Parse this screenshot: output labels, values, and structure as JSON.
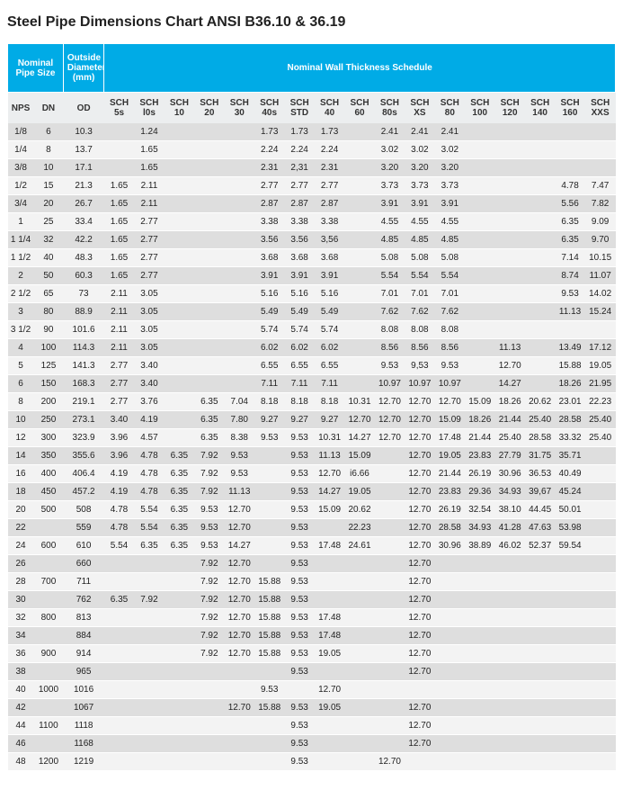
{
  "title": "Steel Pipe Dimensions Chart ANSI B36.10 & 36.19",
  "headers": {
    "group_nps": "Nominal Pipe Size",
    "group_od": "Outside Diameter (mm)",
    "group_sch": "Nominal Wall Thickness Schedule",
    "nps": "NPS",
    "dn": "DN",
    "od": "OD",
    "sch": [
      "SCH 5s",
      "SCH l0s",
      "SCH 10",
      "SCH 20",
      "SCH 30",
      "SCH 40s",
      "SCH STD",
      "SCH 40",
      "SCH 60",
      "SCH 80s",
      "SCH XS",
      "SCH 80",
      "SCH 100",
      "SCH 120",
      "SCH 140",
      "SCH 160",
      "SCH XXS"
    ]
  },
  "rows": [
    {
      "nps": "1/8",
      "dn": "6",
      "od": "10.3",
      "v": [
        "",
        "1.24",
        "",
        "",
        "",
        "1.73",
        "1.73",
        "1.73",
        "",
        "2.41",
        "2.41",
        "2.41",
        "",
        "",
        "",
        "",
        ""
      ]
    },
    {
      "nps": "1/4",
      "dn": "8",
      "od": "13.7",
      "v": [
        "",
        "1.65",
        "",
        "",
        "",
        "2.24",
        "2.24",
        "2.24",
        "",
        "3.02",
        "3.02",
        "3.02",
        "",
        "",
        "",
        "",
        ""
      ]
    },
    {
      "nps": "3/8",
      "dn": "10",
      "od": "17.1",
      "v": [
        "",
        "1.65",
        "",
        "",
        "",
        "2.31",
        "2,31",
        "2.31",
        "",
        "3.20",
        "3.20",
        "3.20",
        "",
        "",
        "",
        "",
        ""
      ]
    },
    {
      "nps": "1/2",
      "dn": "15",
      "od": "21.3",
      "v": [
        "1.65",
        "2.11",
        "",
        "",
        "",
        "2.77",
        "2.77",
        "2.77",
        "",
        "3.73",
        "3.73",
        "3.73",
        "",
        "",
        "",
        "4.78",
        "7.47"
      ]
    },
    {
      "nps": "3/4",
      "dn": "20",
      "od": "26.7",
      "v": [
        "1.65",
        "2.11",
        "",
        "",
        "",
        "2.87",
        "2.87",
        "2.87",
        "",
        "3.91",
        "3.91",
        "3.91",
        "",
        "",
        "",
        "5.56",
        "7.82"
      ]
    },
    {
      "nps": "1",
      "dn": "25",
      "od": "33.4",
      "v": [
        "1.65",
        "2.77",
        "",
        "",
        "",
        "3.38",
        "3.38",
        "3.38",
        "",
        "4.55",
        "4.55",
        "4.55",
        "",
        "",
        "",
        "6.35",
        "9.09"
      ]
    },
    {
      "nps": "1 1/4",
      "dn": "32",
      "od": "42.2",
      "v": [
        "1.65",
        "2.77",
        "",
        "",
        "",
        "3.56",
        "3.56",
        "3,56",
        "",
        "4.85",
        "4.85",
        "4.85",
        "",
        "",
        "",
        "6.35",
        "9.70"
      ]
    },
    {
      "nps": "1 1/2",
      "dn": "40",
      "od": "48.3",
      "v": [
        "1.65",
        "2.77",
        "",
        "",
        "",
        "3.68",
        "3.68",
        "3.68",
        "",
        "5.08",
        "5.08",
        "5.08",
        "",
        "",
        "",
        "7.14",
        "10.15"
      ]
    },
    {
      "nps": "2",
      "dn": "50",
      "od": "60.3",
      "v": [
        "1.65",
        "2.77",
        "",
        "",
        "",
        "3.91",
        "3.91",
        "3.91",
        "",
        "5.54",
        "5.54",
        "5.54",
        "",
        "",
        "",
        "8.74",
        "11.07"
      ]
    },
    {
      "nps": "2 1/2",
      "dn": "65",
      "od": "73",
      "v": [
        "2.11",
        "3.05",
        "",
        "",
        "",
        "5.16",
        "5.16",
        "5.16",
        "",
        "7.01",
        "7.01",
        "7.01",
        "",
        "",
        "",
        "9.53",
        "14.02"
      ]
    },
    {
      "nps": "3",
      "dn": "80",
      "od": "88.9",
      "v": [
        "2.11",
        "3.05",
        "",
        "",
        "",
        "5.49",
        "5.49",
        "5.49",
        "",
        "7.62",
        "7.62",
        "7.62",
        "",
        "",
        "",
        "11.13",
        "15.24"
      ]
    },
    {
      "nps": "3 1/2",
      "dn": "90",
      "od": "101.6",
      "v": [
        "2.11",
        "3.05",
        "",
        "",
        "",
        "5.74",
        "5.74",
        "5.74",
        "",
        "8.08",
        "8.08",
        "8.08",
        "",
        "",
        "",
        "",
        ""
      ]
    },
    {
      "nps": "4",
      "dn": "100",
      "od": "114.3",
      "v": [
        "2.11",
        "3.05",
        "",
        "",
        "",
        "6.02",
        "6.02",
        "6.02",
        "",
        "8.56",
        "8.56",
        "8.56",
        "",
        "11.13",
        "",
        "13.49",
        "17.12"
      ]
    },
    {
      "nps": "5",
      "dn": "125",
      "od": "141.3",
      "v": [
        "2.77",
        "3.40",
        "",
        "",
        "",
        "6.55",
        "6.55",
        "6.55",
        "",
        "9.53",
        "9,53",
        "9.53",
        "",
        "12.70",
        "",
        "15.88",
        "19.05"
      ]
    },
    {
      "nps": "6",
      "dn": "150",
      "od": "168.3",
      "v": [
        "2.77",
        "3.40",
        "",
        "",
        "",
        "7.11",
        "7.11",
        "7.11",
        "",
        "10.97",
        "10.97",
        "10.97",
        "",
        "14.27",
        "",
        "18.26",
        "21.95"
      ]
    },
    {
      "nps": "8",
      "dn": "200",
      "od": "219.1",
      "v": [
        "2.77",
        "3.76",
        "",
        "6.35",
        "7.04",
        "8.18",
        "8.18",
        "8.18",
        "10.31",
        "12.70",
        "12.70",
        "12.70",
        "15.09",
        "18.26",
        "20.62",
        "23.01",
        "22.23"
      ]
    },
    {
      "nps": "10",
      "dn": "250",
      "od": "273.1",
      "v": [
        "3.40",
        "4.19",
        "",
        "6.35",
        "7.80",
        "9.27",
        "9.27",
        "9.27",
        "12.70",
        "12.70",
        "12.70",
        "15.09",
        "18.26",
        "21.44",
        "25.40",
        "28.58",
        "25.40"
      ]
    },
    {
      "nps": "12",
      "dn": "300",
      "od": "323.9",
      "v": [
        "3.96",
        "4.57",
        "",
        "6.35",
        "8.38",
        "9.53",
        "9.53",
        "10.31",
        "14.27",
        "12.70",
        "12.70",
        "17.48",
        "21.44",
        "25.40",
        "28.58",
        "33.32",
        "25.40"
      ]
    },
    {
      "nps": "14",
      "dn": "350",
      "od": "355.6",
      "v": [
        "3.96",
        "4.78",
        "6.35",
        "7.92",
        "9.53",
        "",
        "9.53",
        "11.13",
        "15.09",
        "",
        "12.70",
        "19.05",
        "23.83",
        "27.79",
        "31.75",
        "35.71",
        ""
      ]
    },
    {
      "nps": "16",
      "dn": "400",
      "od": "406.4",
      "v": [
        "4.19",
        "4.78",
        "6.35",
        "7.92",
        "9.53",
        "",
        "9.53",
        "12.70",
        "i6.66",
        "",
        "12.70",
        "21.44",
        "26.19",
        "30.96",
        "36.53",
        "40.49",
        ""
      ]
    },
    {
      "nps": "18",
      "dn": "450",
      "od": "457.2",
      "v": [
        "4.19",
        "4.78",
        "6.35",
        "7.92",
        "11.13",
        "",
        "9.53",
        "14.27",
        "19.05",
        "",
        "12.70",
        "23.83",
        "29.36",
        "34.93",
        "39,67",
        "45.24",
        ""
      ]
    },
    {
      "nps": "20",
      "dn": "500",
      "od": "508",
      "v": [
        "4.78",
        "5.54",
        "6.35",
        "9.53",
        "12.70",
        "",
        "9.53",
        "15.09",
        "20.62",
        "",
        "12.70",
        "26.19",
        "32.54",
        "38.10",
        "44.45",
        "50.01",
        ""
      ]
    },
    {
      "nps": "22",
      "dn": "",
      "od": "559",
      "v": [
        "4.78",
        "5.54",
        "6.35",
        "9.53",
        "12.70",
        "",
        "9.53",
        "",
        "22.23",
        "",
        "12.70",
        "28.58",
        "34.93",
        "41.28",
        "47.63",
        "53.98",
        ""
      ]
    },
    {
      "nps": "24",
      "dn": "600",
      "od": "610",
      "v": [
        "5.54",
        "6.35",
        "6.35",
        "9.53",
        "14.27",
        "",
        "9.53",
        "17.48",
        "24.61",
        "",
        "12.70",
        "30.96",
        "38.89",
        "46.02",
        "52.37",
        "59.54",
        ""
      ]
    },
    {
      "nps": "26",
      "dn": "",
      "od": "660",
      "v": [
        "",
        "",
        "",
        "7.92",
        "12.70",
        "",
        "9.53",
        "",
        "",
        "",
        "12.70",
        "",
        "",
        "",
        "",
        "",
        ""
      ]
    },
    {
      "nps": "28",
      "dn": "700",
      "od": "711",
      "v": [
        "",
        "",
        "",
        "7.92",
        "12.70",
        "15.88",
        "9.53",
        "",
        "",
        "",
        "12.70",
        "",
        "",
        "",
        "",
        "",
        ""
      ]
    },
    {
      "nps": "30",
      "dn": "",
      "od": "762",
      "v": [
        "6.35",
        "7.92",
        "",
        "7.92",
        "12.70",
        "15.88",
        "9.53",
        "",
        "",
        "",
        "12.70",
        "",
        "",
        "",
        "",
        "",
        ""
      ]
    },
    {
      "nps": "32",
      "dn": "800",
      "od": "813",
      "v": [
        "",
        "",
        "",
        "7.92",
        "12.70",
        "15.88",
        "9.53",
        "17.48",
        "",
        "",
        "12.70",
        "",
        "",
        "",
        "",
        "",
        ""
      ]
    },
    {
      "nps": "34",
      "dn": "",
      "od": "884",
      "v": [
        "",
        "",
        "",
        "7.92",
        "12.70",
        "15.88",
        "9.53",
        "17.48",
        "",
        "",
        "12.70",
        "",
        "",
        "",
        "",
        "",
        ""
      ]
    },
    {
      "nps": "36",
      "dn": "900",
      "od": "914",
      "v": [
        "",
        "",
        "",
        "7.92",
        "12.70",
        "15.88",
        "9.53",
        "19.05",
        "",
        "",
        "12.70",
        "",
        "",
        "",
        "",
        "",
        ""
      ]
    },
    {
      "nps": "38",
      "dn": "",
      "od": "965",
      "v": [
        "",
        "",
        "",
        "",
        "",
        "",
        "9.53",
        "",
        "",
        "",
        "12.70",
        "",
        "",
        "",
        "",
        "",
        ""
      ]
    },
    {
      "nps": "40",
      "dn": "1000",
      "od": "1016",
      "v": [
        "",
        "",
        "",
        "",
        "",
        "9.53",
        "",
        "12.70",
        "",
        "",
        "",
        "",
        "",
        "",
        "",
        "",
        ""
      ]
    },
    {
      "nps": "42",
      "dn": "",
      "od": "1067",
      "v": [
        "",
        "",
        "",
        "",
        "12.70",
        "15.88",
        "9.53",
        "19.05",
        "",
        "",
        "12.70",
        "",
        "",
        "",
        "",
        "",
        ""
      ]
    },
    {
      "nps": "44",
      "dn": "1100",
      "od": "1118",
      "v": [
        "",
        "",
        "",
        "",
        "",
        "",
        "9.53",
        "",
        "",
        "",
        "12.70",
        "",
        "",
        "",
        "",
        "",
        ""
      ]
    },
    {
      "nps": "46",
      "dn": "",
      "od": "1168",
      "v": [
        "",
        "",
        "",
        "",
        "",
        "",
        "9.53",
        "",
        "",
        "",
        "12.70",
        "",
        "",
        "",
        "",
        "",
        ""
      ]
    },
    {
      "nps": "48",
      "dn": "1200",
      "od": "1219",
      "v": [
        "",
        "",
        "",
        "",
        "",
        "",
        "9.53",
        "",
        "",
        "12.70",
        "",
        "",
        "",
        "",
        "",
        "",
        ""
      ]
    }
  ]
}
